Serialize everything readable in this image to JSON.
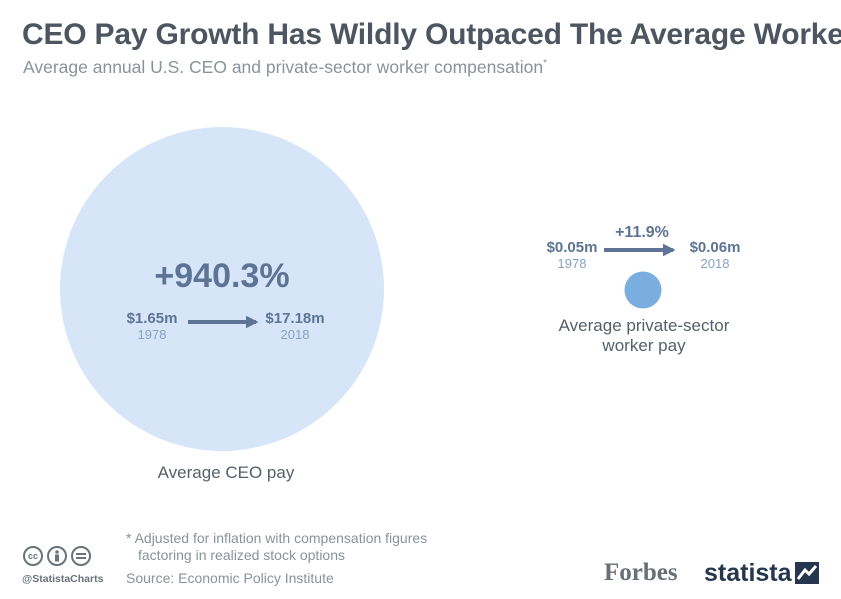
{
  "header": {
    "title": "CEO Pay Growth Has Wildly Outpaced The Average Worker",
    "subtitle": "Average annual U.S. CEO and private-sector worker compensation",
    "subtitle_mark": "*"
  },
  "chart_data": {
    "type": "bubble",
    "series": [
      {
        "name": "Average CEO pay",
        "change_label": "+940.3%",
        "change_percent": 940.3,
        "start": {
          "year": "1978",
          "label": "$1.65m",
          "value_m": 1.65
        },
        "end": {
          "year": "2018",
          "label": "$17.18m",
          "value_m": 17.18
        }
      },
      {
        "name": "Average private-sector worker pay",
        "name_lines": [
          "Average private-sector",
          "worker pay"
        ],
        "change_label": "+11.9%",
        "change_percent": 11.9,
        "start": {
          "year": "1978",
          "label": "$0.05m",
          "value_m": 0.05
        },
        "end": {
          "year": "2018",
          "label": "$0.06m",
          "value_m": 0.06
        }
      }
    ],
    "colors": {
      "ceo_circle": "#d6e5f8",
      "worker_circle": "#7aaede",
      "arrow": "#5d7494"
    }
  },
  "footer": {
    "footnote_line1": "* Adjusted for inflation with compensation figures",
    "footnote_line2": "factoring in realized stock options",
    "source": "Source: Economic Policy Institute",
    "handle": "@StatistaCharts",
    "license_icons": [
      "cc-icon",
      "by-person-icon",
      "nd-equals-icon"
    ],
    "brand_forbes": "Forbes",
    "brand_statista": "statista"
  }
}
